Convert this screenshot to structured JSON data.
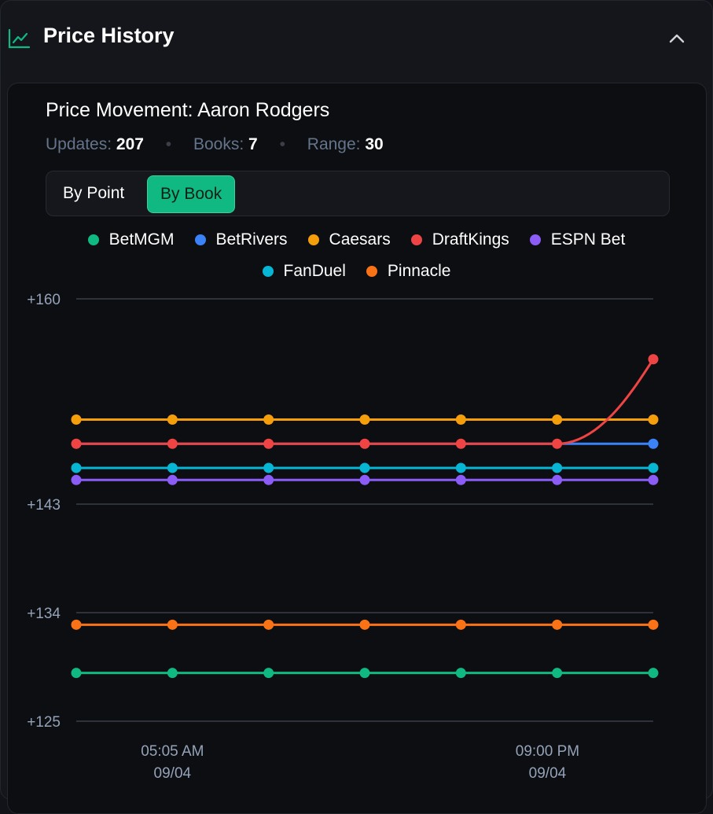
{
  "header": {
    "title": "Price History",
    "icon": "line-chart-icon",
    "collapse_icon": "chevron-up-icon"
  },
  "card": {
    "title": "Price Movement: Aaron Rodgers",
    "stats": {
      "updates_label": "Updates:",
      "updates_value": "207",
      "books_label": "Books:",
      "books_value": "7",
      "range_label": "Range:",
      "range_value": "30"
    }
  },
  "toggle": {
    "by_point": "By Point",
    "by_book": "By Book",
    "active": "By Book"
  },
  "colors": {
    "accent": "#10b981",
    "grid": "#3a3f49",
    "tick": "#94a3b8"
  },
  "chart_data": {
    "type": "line",
    "title": "Price Movement: Aaron Rodgers",
    "ylim": [
      125,
      160
    ],
    "yticks": [
      125,
      134,
      143,
      160
    ],
    "ytick_labels": [
      "+125",
      "+134",
      "+143",
      "+160"
    ],
    "x": [
      0,
      1,
      2,
      3,
      4,
      5,
      6
    ],
    "xticks": [
      {
        "x": 1,
        "label": "05:05 AM",
        "sublabel": "09/04"
      },
      {
        "x": 4.9,
        "label": "09:00 PM",
        "sublabel": "09/04"
      }
    ],
    "grid": true,
    "legend_position": "top-center",
    "series": [
      {
        "name": "BetMGM",
        "color": "#10b981",
        "values": [
          129,
          129,
          129,
          129,
          129,
          129,
          129
        ]
      },
      {
        "name": "BetRivers",
        "color": "#3b82f6",
        "values": [
          148,
          148,
          148,
          148,
          148,
          148,
          148
        ]
      },
      {
        "name": "Caesars",
        "color": "#f59e0b",
        "values": [
          150,
          150,
          150,
          150,
          150,
          150,
          150
        ]
      },
      {
        "name": "DraftKings",
        "color": "#ef4444",
        "values": [
          148,
          148,
          148,
          148,
          148,
          148,
          155
        ]
      },
      {
        "name": "ESPN Bet",
        "color": "#8b5cf6",
        "values": [
          145,
          145,
          145,
          145,
          145,
          145,
          145
        ]
      },
      {
        "name": "FanDuel",
        "color": "#06b6d4",
        "values": [
          146,
          146,
          146,
          146,
          146,
          146,
          146
        ]
      },
      {
        "name": "Pinnacle",
        "color": "#f97316",
        "values": [
          133,
          133,
          133,
          133,
          133,
          133,
          133
        ]
      }
    ]
  }
}
